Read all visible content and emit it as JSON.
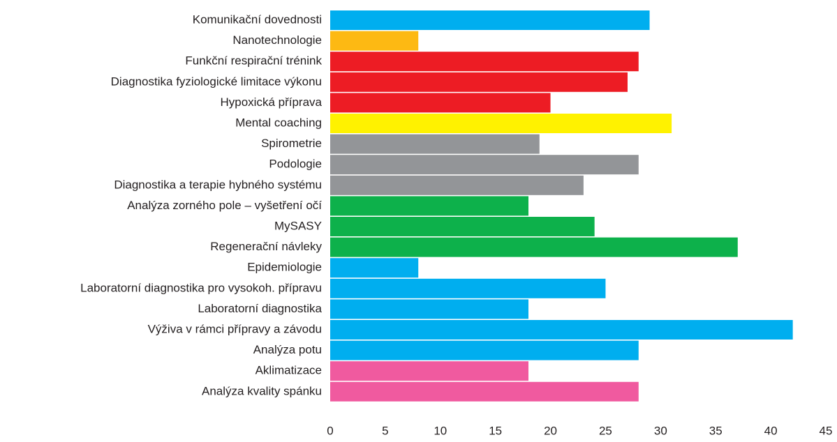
{
  "chart_data": {
    "type": "barh",
    "categories": [
      "Komunikační dovednosti",
      "Nanotechnologie",
      "Funkční respirační trénink",
      "Diagnostika fyziologické limitace výkonu",
      "Hypoxická příprava",
      "Mental coaching",
      "Spirometrie",
      "Podologie",
      "Diagnostika a terapie hybného systému",
      "Analýza zorného pole – vyšetření očí",
      "MySASY",
      "Regenerační návleky",
      "Epidemiologie",
      "Laboratorní diagnostika pro vysokoh. přípravu",
      "Laboratorní diagnostika",
      "Výživa v rámci přípravy a závodu",
      "Analýza potu",
      "Aklimatizace",
      "Analýza kvality spánku"
    ],
    "values": [
      29,
      8,
      28,
      27,
      20,
      31,
      19,
      28,
      23,
      18,
      24,
      37,
      8,
      25,
      18,
      42,
      28,
      18,
      28
    ],
    "colors": [
      "#00aeef",
      "#fdb913",
      "#ed1c24",
      "#ed1c24",
      "#ed1c24",
      "#fff200",
      "#939598",
      "#939598",
      "#939598",
      "#0db14b",
      "#0db14b",
      "#0db14b",
      "#00aeef",
      "#00aeef",
      "#00aeef",
      "#00aeef",
      "#00aeef",
      "#f05a9f",
      "#f05a9f"
    ],
    "xlim": [
      0,
      45
    ],
    "xticks": [
      0,
      5,
      10,
      15,
      20,
      25,
      30,
      35,
      40,
      45
    ],
    "grid": false
  }
}
